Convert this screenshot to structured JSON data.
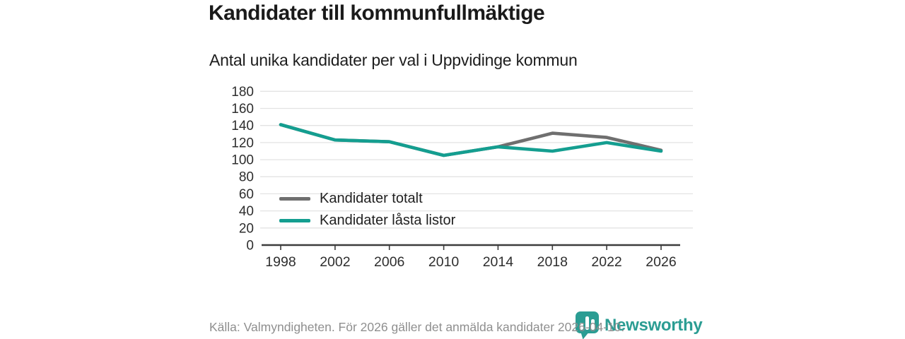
{
  "header": {
    "title": "Kandidater till kommunfullmäktige",
    "subtitle": "Antal unika kandidater per val i Uppvidinge kommun"
  },
  "colors": {
    "series_total_gray": "#6f6f6f",
    "series_locked_teal": "#149e90",
    "brand_teal": "#2b9d93",
    "grid": "#e3e3e3",
    "axis": "#3c3c3c",
    "tick_text": "#2e2e2e",
    "footer_text": "#8f8f8f"
  },
  "chart_data": {
    "type": "line",
    "title": "Kandidater till kommunfullmäktige",
    "subtitle": "Antal unika kandidater per val i Uppvidinge kommun",
    "x": [
      1998,
      2002,
      2006,
      2010,
      2014,
      2018,
      2022,
      2026
    ],
    "series": [
      {
        "name": "Kandidater totalt",
        "color": "#6f6f6f",
        "values": [
          141,
          123,
          121,
          105,
          115,
          131,
          126,
          111
        ]
      },
      {
        "name": "Kandidater låsta listor",
        "color": "#149e90",
        "values": [
          141,
          123,
          121,
          105,
          115,
          110,
          120,
          110
        ]
      }
    ],
    "xlabel": "",
    "ylabel": "",
    "ylim": [
      0,
      180
    ],
    "yticks": [
      0,
      20,
      40,
      60,
      80,
      100,
      120,
      140,
      160,
      180
    ],
    "grid": true,
    "legend_position": "inside-lower-left"
  },
  "footer": {
    "source_text": "Källa: Valmyndigheten. För 2026 gäller det anmälda kandidater 2026-04-10.",
    "brand_name": "Newsworthy"
  }
}
